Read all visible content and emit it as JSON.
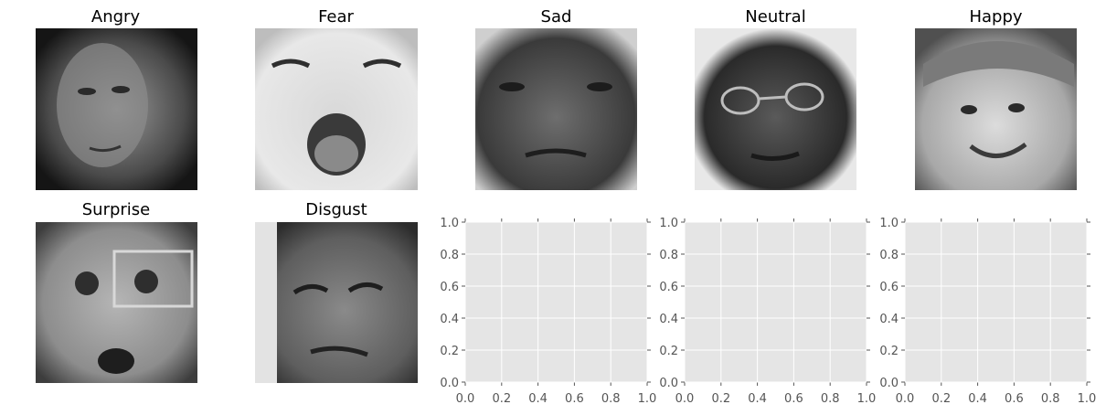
{
  "figure": {
    "background": "#ffffff"
  },
  "images": [
    {
      "title": "Angry"
    },
    {
      "title": "Fear"
    },
    {
      "title": "Sad"
    },
    {
      "title": "Neutral"
    },
    {
      "title": "Happy"
    },
    {
      "title": "Surprise"
    },
    {
      "title": "Disgust"
    }
  ],
  "chart_data": [
    {
      "type": "scatter",
      "series": [],
      "xlim": [
        0,
        1
      ],
      "ylim": [
        0,
        1
      ],
      "xticks": [
        "0.0",
        "0.2",
        "0.4",
        "0.6",
        "0.8",
        "1.0"
      ],
      "yticks": [
        "0.0",
        "0.2",
        "0.4",
        "0.6",
        "0.8",
        "1.0"
      ],
      "grid": true,
      "facecolor": "#e5e5e5",
      "gridcolor": "#ffffff"
    },
    {
      "type": "scatter",
      "series": [],
      "xlim": [
        0,
        1
      ],
      "ylim": [
        0,
        1
      ],
      "xticks": [
        "0.0",
        "0.2",
        "0.4",
        "0.6",
        "0.8",
        "1.0"
      ],
      "yticks": [
        "0.0",
        "0.2",
        "0.4",
        "0.6",
        "0.8",
        "1.0"
      ],
      "grid": true,
      "facecolor": "#e5e5e5",
      "gridcolor": "#ffffff"
    },
    {
      "type": "scatter",
      "series": [],
      "xlim": [
        0,
        1
      ],
      "ylim": [
        0,
        1
      ],
      "xticks": [
        "0.0",
        "0.2",
        "0.4",
        "0.6",
        "0.8",
        "1.0"
      ],
      "yticks": [
        "0.0",
        "0.2",
        "0.4",
        "0.6",
        "0.8",
        "1.0"
      ],
      "grid": true,
      "facecolor": "#e5e5e5",
      "gridcolor": "#ffffff"
    }
  ]
}
